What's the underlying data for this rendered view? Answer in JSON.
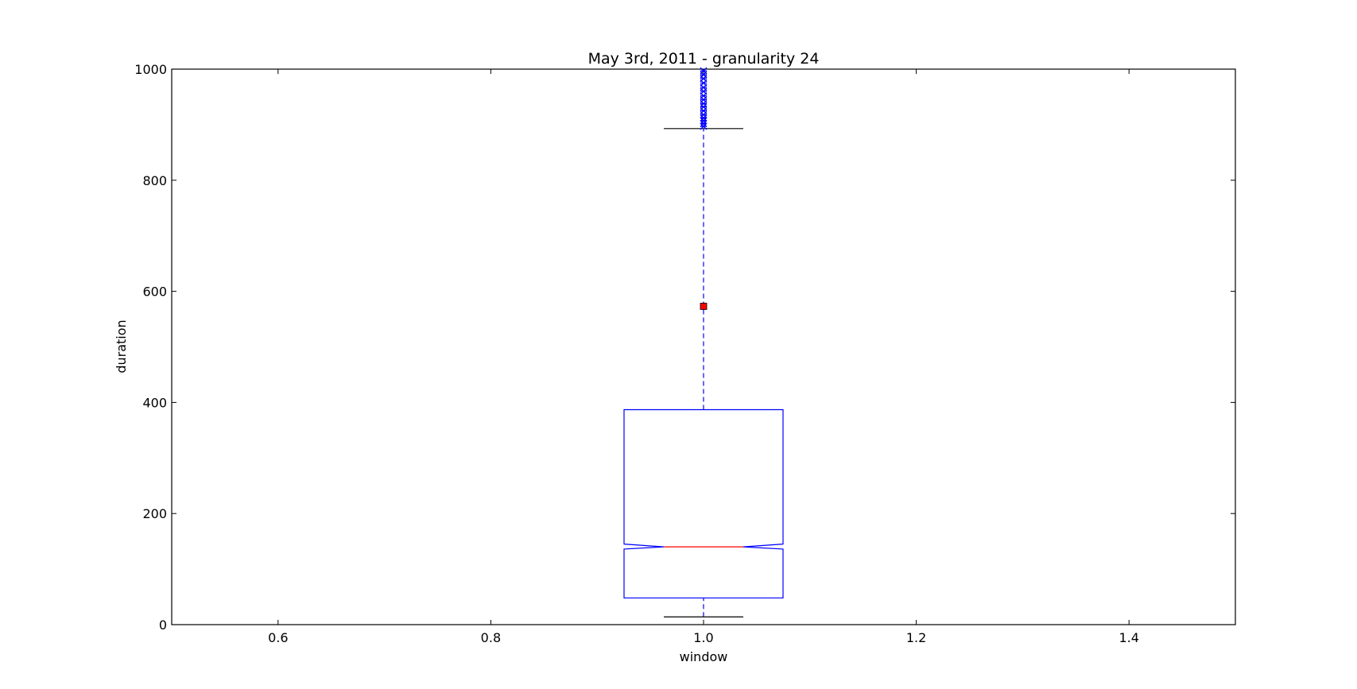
{
  "chart_data": {
    "type": "box",
    "title": "May 3rd, 2011 - granularity 24",
    "xlabel": "window",
    "ylabel": "duration",
    "xlim": [
      0.5,
      1.5
    ],
    "ylim": [
      0,
      1000
    ],
    "x_ticks": [
      0.6,
      0.8,
      1.0,
      1.2,
      1.4
    ],
    "x_tick_labels": [
      "0.6",
      "0.8",
      "1.0",
      "1.2",
      "1.4"
    ],
    "y_ticks": [
      0,
      200,
      400,
      600,
      800,
      1000
    ],
    "y_tick_labels": [
      "0",
      "200",
      "400",
      "600",
      "800",
      "1000"
    ],
    "grid": false,
    "notched": true,
    "boxes": [
      {
        "position": 1.0,
        "whisker_low": 14,
        "q1": 48,
        "median": 140,
        "q3": 387,
        "whisker_high": 893,
        "notch_low": 136,
        "notch_high": 145,
        "mean": 573,
        "fliers": [
          897,
          902,
          907,
          912,
          918,
          925,
          932,
          938,
          945,
          952,
          960,
          967,
          975,
          983,
          990,
          997
        ],
        "box_color": "#0000ff",
        "median_color": "#ff0000",
        "cap_color": "#000000",
        "flier_color": "#0000ff",
        "mean_color": "#ff0000"
      }
    ]
  }
}
